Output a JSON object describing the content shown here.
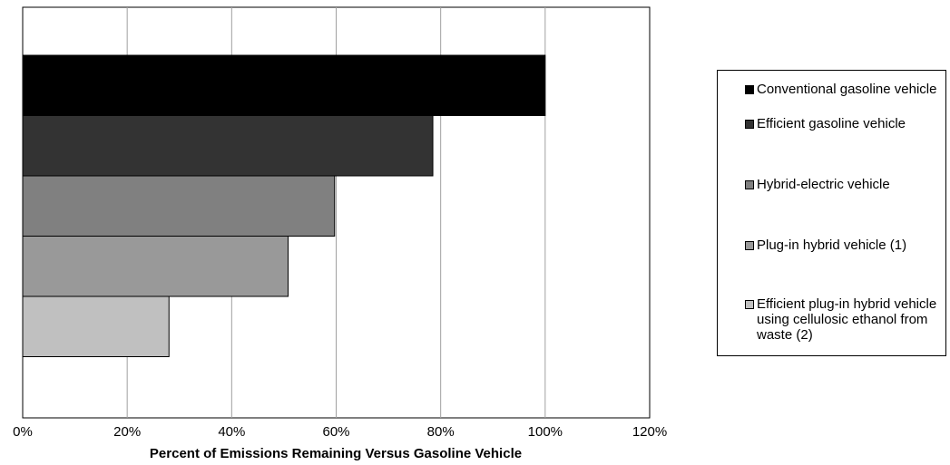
{
  "chart_data": {
    "type": "bar",
    "orientation": "horizontal",
    "categories": [
      "Conventional gasoline vehicle",
      "Efficient gasoline vehicle",
      "Hybrid-electric vehicle",
      "Plug-in hybrid vehicle (1)",
      "Efficient plug-in hybrid vehicle using cellulosic ethanol from waste (2)"
    ],
    "values": [
      100,
      78.5,
      59.7,
      50.8,
      28
    ],
    "colors": [
      "#000000",
      "#333333",
      "#808080",
      "#999999",
      "#c0c0c0"
    ],
    "xlabel": "Percent of Emissions Remaining Versus Gasoline Vehicle",
    "xlim": [
      0,
      120
    ],
    "xticks": [
      "0%",
      "20%",
      "40%",
      "60%",
      "80%",
      "100%",
      "120%"
    ],
    "grid": "vertical",
    "legend_position": "right"
  }
}
